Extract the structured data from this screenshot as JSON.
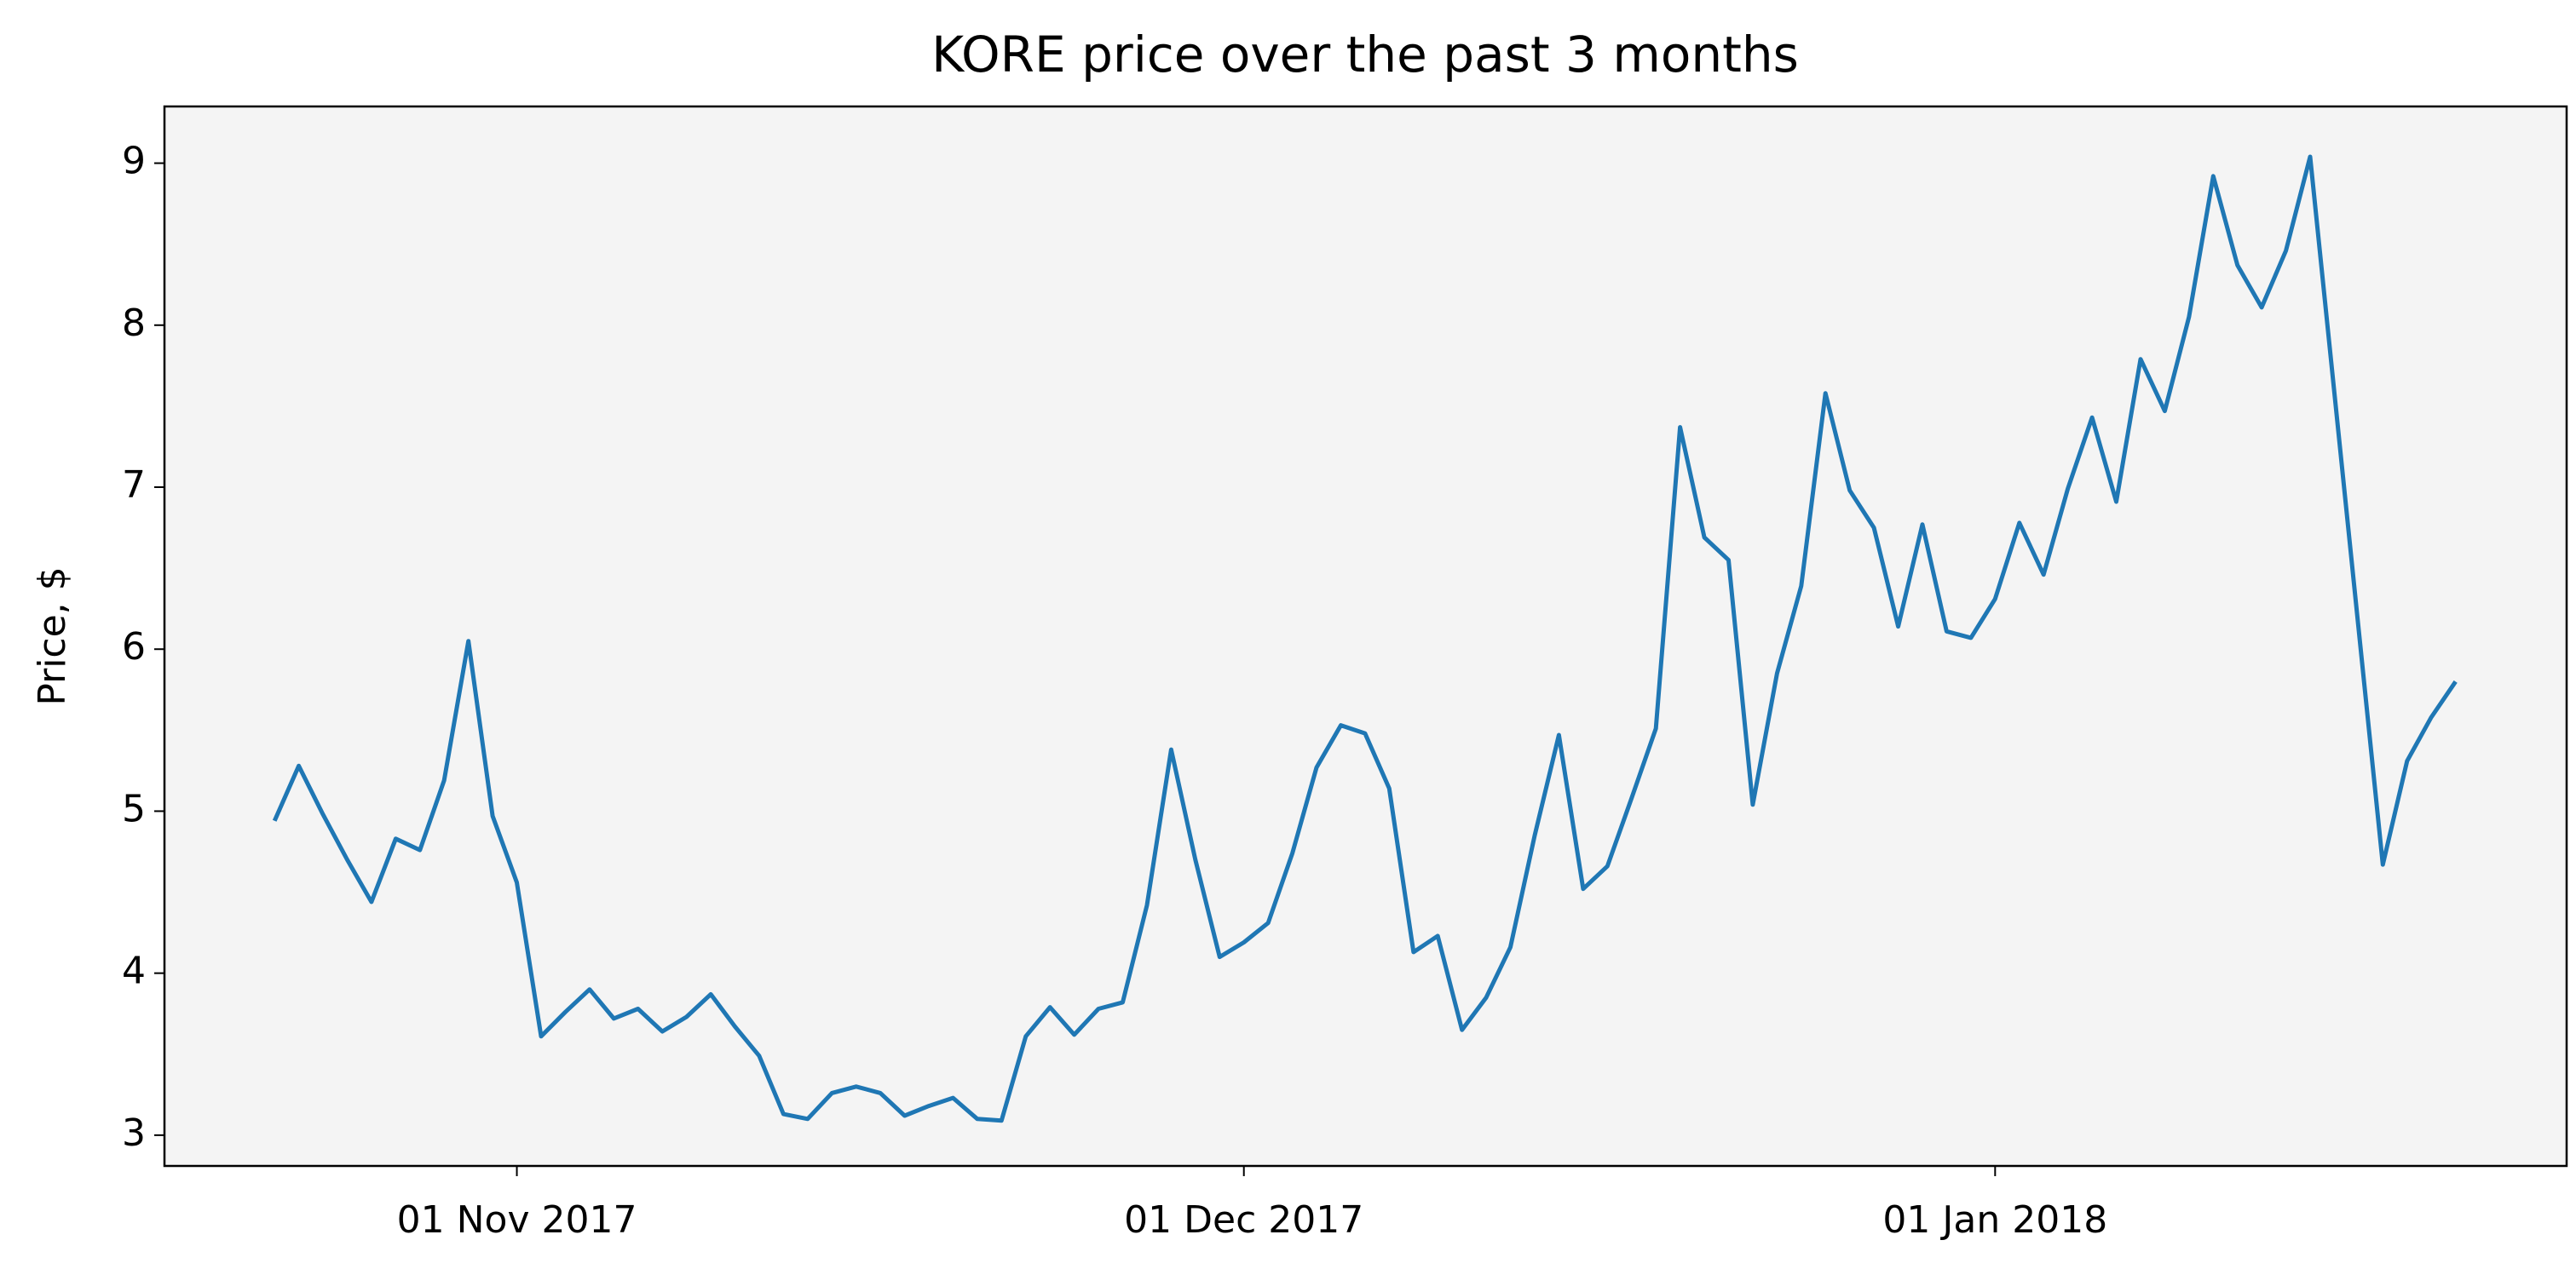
{
  "chart_data": {
    "type": "line",
    "title": "KORE price over the past 3 months",
    "ylabel": "Price, $",
    "x": [
      "2017-10-22",
      "2017-10-23",
      "2017-10-24",
      "2017-10-25",
      "2017-10-26",
      "2017-10-27",
      "2017-10-28",
      "2017-10-29",
      "2017-10-30",
      "2017-10-31",
      "2017-11-01",
      "2017-11-02",
      "2017-11-03",
      "2017-11-04",
      "2017-11-05",
      "2017-11-06",
      "2017-11-07",
      "2017-11-08",
      "2017-11-09",
      "2017-11-10",
      "2017-11-11",
      "2017-11-12",
      "2017-11-13",
      "2017-11-14",
      "2017-11-15",
      "2017-11-16",
      "2017-11-17",
      "2017-11-18",
      "2017-11-19",
      "2017-11-20",
      "2017-11-21",
      "2017-11-22",
      "2017-11-23",
      "2017-11-24",
      "2017-11-25",
      "2017-11-26",
      "2017-11-27",
      "2017-11-28",
      "2017-11-29",
      "2017-11-30",
      "2017-12-01",
      "2017-12-02",
      "2017-12-03",
      "2017-12-04",
      "2017-12-05",
      "2017-12-06",
      "2017-12-07",
      "2017-12-08",
      "2017-12-09",
      "2017-12-10",
      "2017-12-11",
      "2017-12-12",
      "2017-12-13",
      "2017-12-14",
      "2017-12-15",
      "2017-12-16",
      "2017-12-17",
      "2017-12-18",
      "2017-12-19",
      "2017-12-20",
      "2017-12-21",
      "2017-12-22",
      "2017-12-23",
      "2017-12-24",
      "2017-12-25",
      "2017-12-26",
      "2017-12-27",
      "2017-12-28",
      "2017-12-29",
      "2017-12-30",
      "2017-12-31",
      "2018-01-01",
      "2018-01-02",
      "2018-01-03",
      "2018-01-04",
      "2018-01-05",
      "2018-01-06",
      "2018-01-07",
      "2018-01-08",
      "2018-01-09",
      "2018-01-10",
      "2018-01-11",
      "2018-01-12",
      "2018-01-13",
      "2018-01-14",
      "2018-01-17",
      "2018-01-18",
      "2018-01-19",
      "2018-01-20"
    ],
    "values": [
      4.94,
      5.28,
      4.98,
      4.7,
      4.44,
      4.83,
      4.76,
      5.19,
      6.05,
      4.97,
      4.56,
      3.61,
      3.76,
      3.9,
      3.72,
      3.78,
      3.64,
      3.73,
      3.87,
      3.67,
      3.49,
      3.13,
      3.1,
      3.26,
      3.3,
      3.26,
      3.12,
      3.18,
      3.23,
      3.1,
      3.09,
      3.61,
      3.79,
      3.62,
      3.78,
      3.82,
      4.42,
      5.38,
      4.7,
      4.1,
      4.19,
      4.31,
      4.74,
      5.27,
      5.53,
      5.48,
      5.14,
      4.13,
      4.23,
      3.65,
      3.85,
      4.16,
      4.85,
      5.47,
      4.52,
      4.66,
      5.08,
      5.51,
      7.37,
      6.69,
      6.55,
      5.04,
      5.85,
      6.39,
      7.58,
      6.98,
      6.75,
      6.14,
      6.77,
      6.11,
      6.07,
      6.31,
      6.78,
      6.46,
      6.99,
      7.43,
      6.91,
      7.79,
      7.47,
      8.05,
      8.92,
      8.37,
      8.11,
      8.46,
      9.04,
      4.67,
      5.31,
      5.58,
      5.8
    ],
    "color": "#1f77b4",
    "xlim": [
      "2017-10-17T11:00",
      "2018-01-24T14:00"
    ],
    "xticks": [
      {
        "value": "2017-11-01",
        "label": "01 Nov 2017"
      },
      {
        "value": "2017-12-01",
        "label": "01 Dec 2017"
      },
      {
        "value": "2018-01-01",
        "label": "01 Jan 2018"
      }
    ],
    "ylim": [
      2.81,
      9.35
    ],
    "yticks": [
      3,
      4,
      5,
      6,
      7,
      8,
      9
    ],
    "grid": false,
    "background": "#f4f4f4"
  }
}
